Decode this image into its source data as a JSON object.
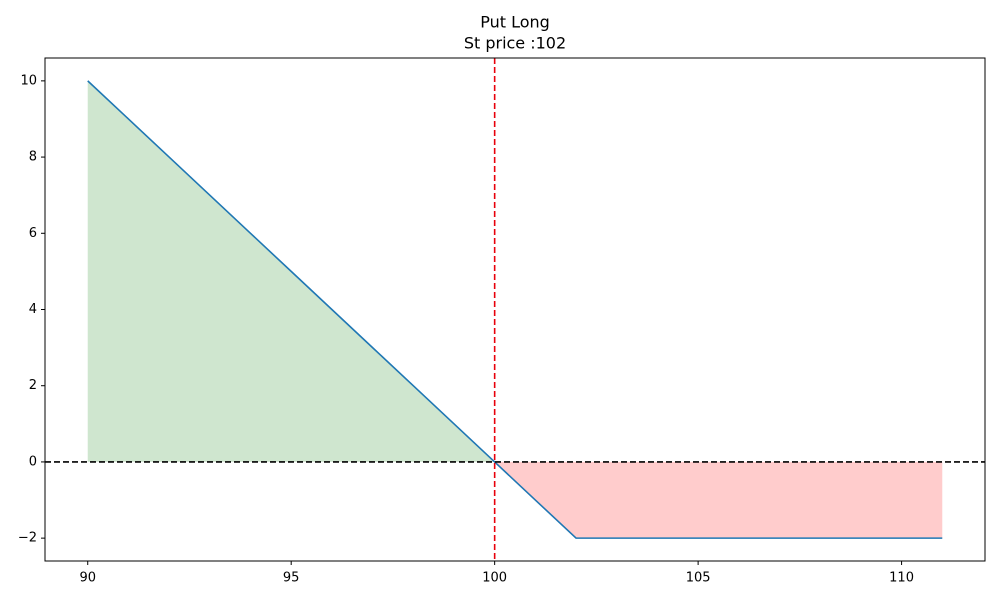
{
  "chart_data": {
    "type": "line",
    "title": "Put Long",
    "subtitle": "St price :102",
    "x": [
      90,
      91,
      92,
      93,
      94,
      95,
      96,
      97,
      98,
      99,
      100,
      101,
      102,
      103,
      104,
      105,
      106,
      107,
      108,
      109,
      110,
      111
    ],
    "series": [
      {
        "color": "#1f77b4",
        "values": [
          10,
          9,
          8,
          7,
          6,
          5,
          4,
          3,
          2,
          1,
          0,
          -1,
          -2,
          -2,
          -2,
          -2,
          -2,
          -2,
          -2,
          -2,
          -2,
          -2
        ]
      }
    ],
    "fill_positive_color": "#cfe6cf",
    "fill_negative_color": "#ffcccc",
    "vline": {
      "x": 100,
      "color": "#e8000b"
    },
    "hline": {
      "y": 0,
      "color": "#000000"
    },
    "xlim": [
      88.95,
      112.05
    ],
    "ylim": [
      -2.6,
      10.6
    ],
    "xticks": [
      90,
      95,
      100,
      105,
      110
    ],
    "yticks": [
      {
        "value": -2,
        "label": "−2"
      },
      0,
      2,
      4,
      6,
      8,
      10
    ]
  }
}
